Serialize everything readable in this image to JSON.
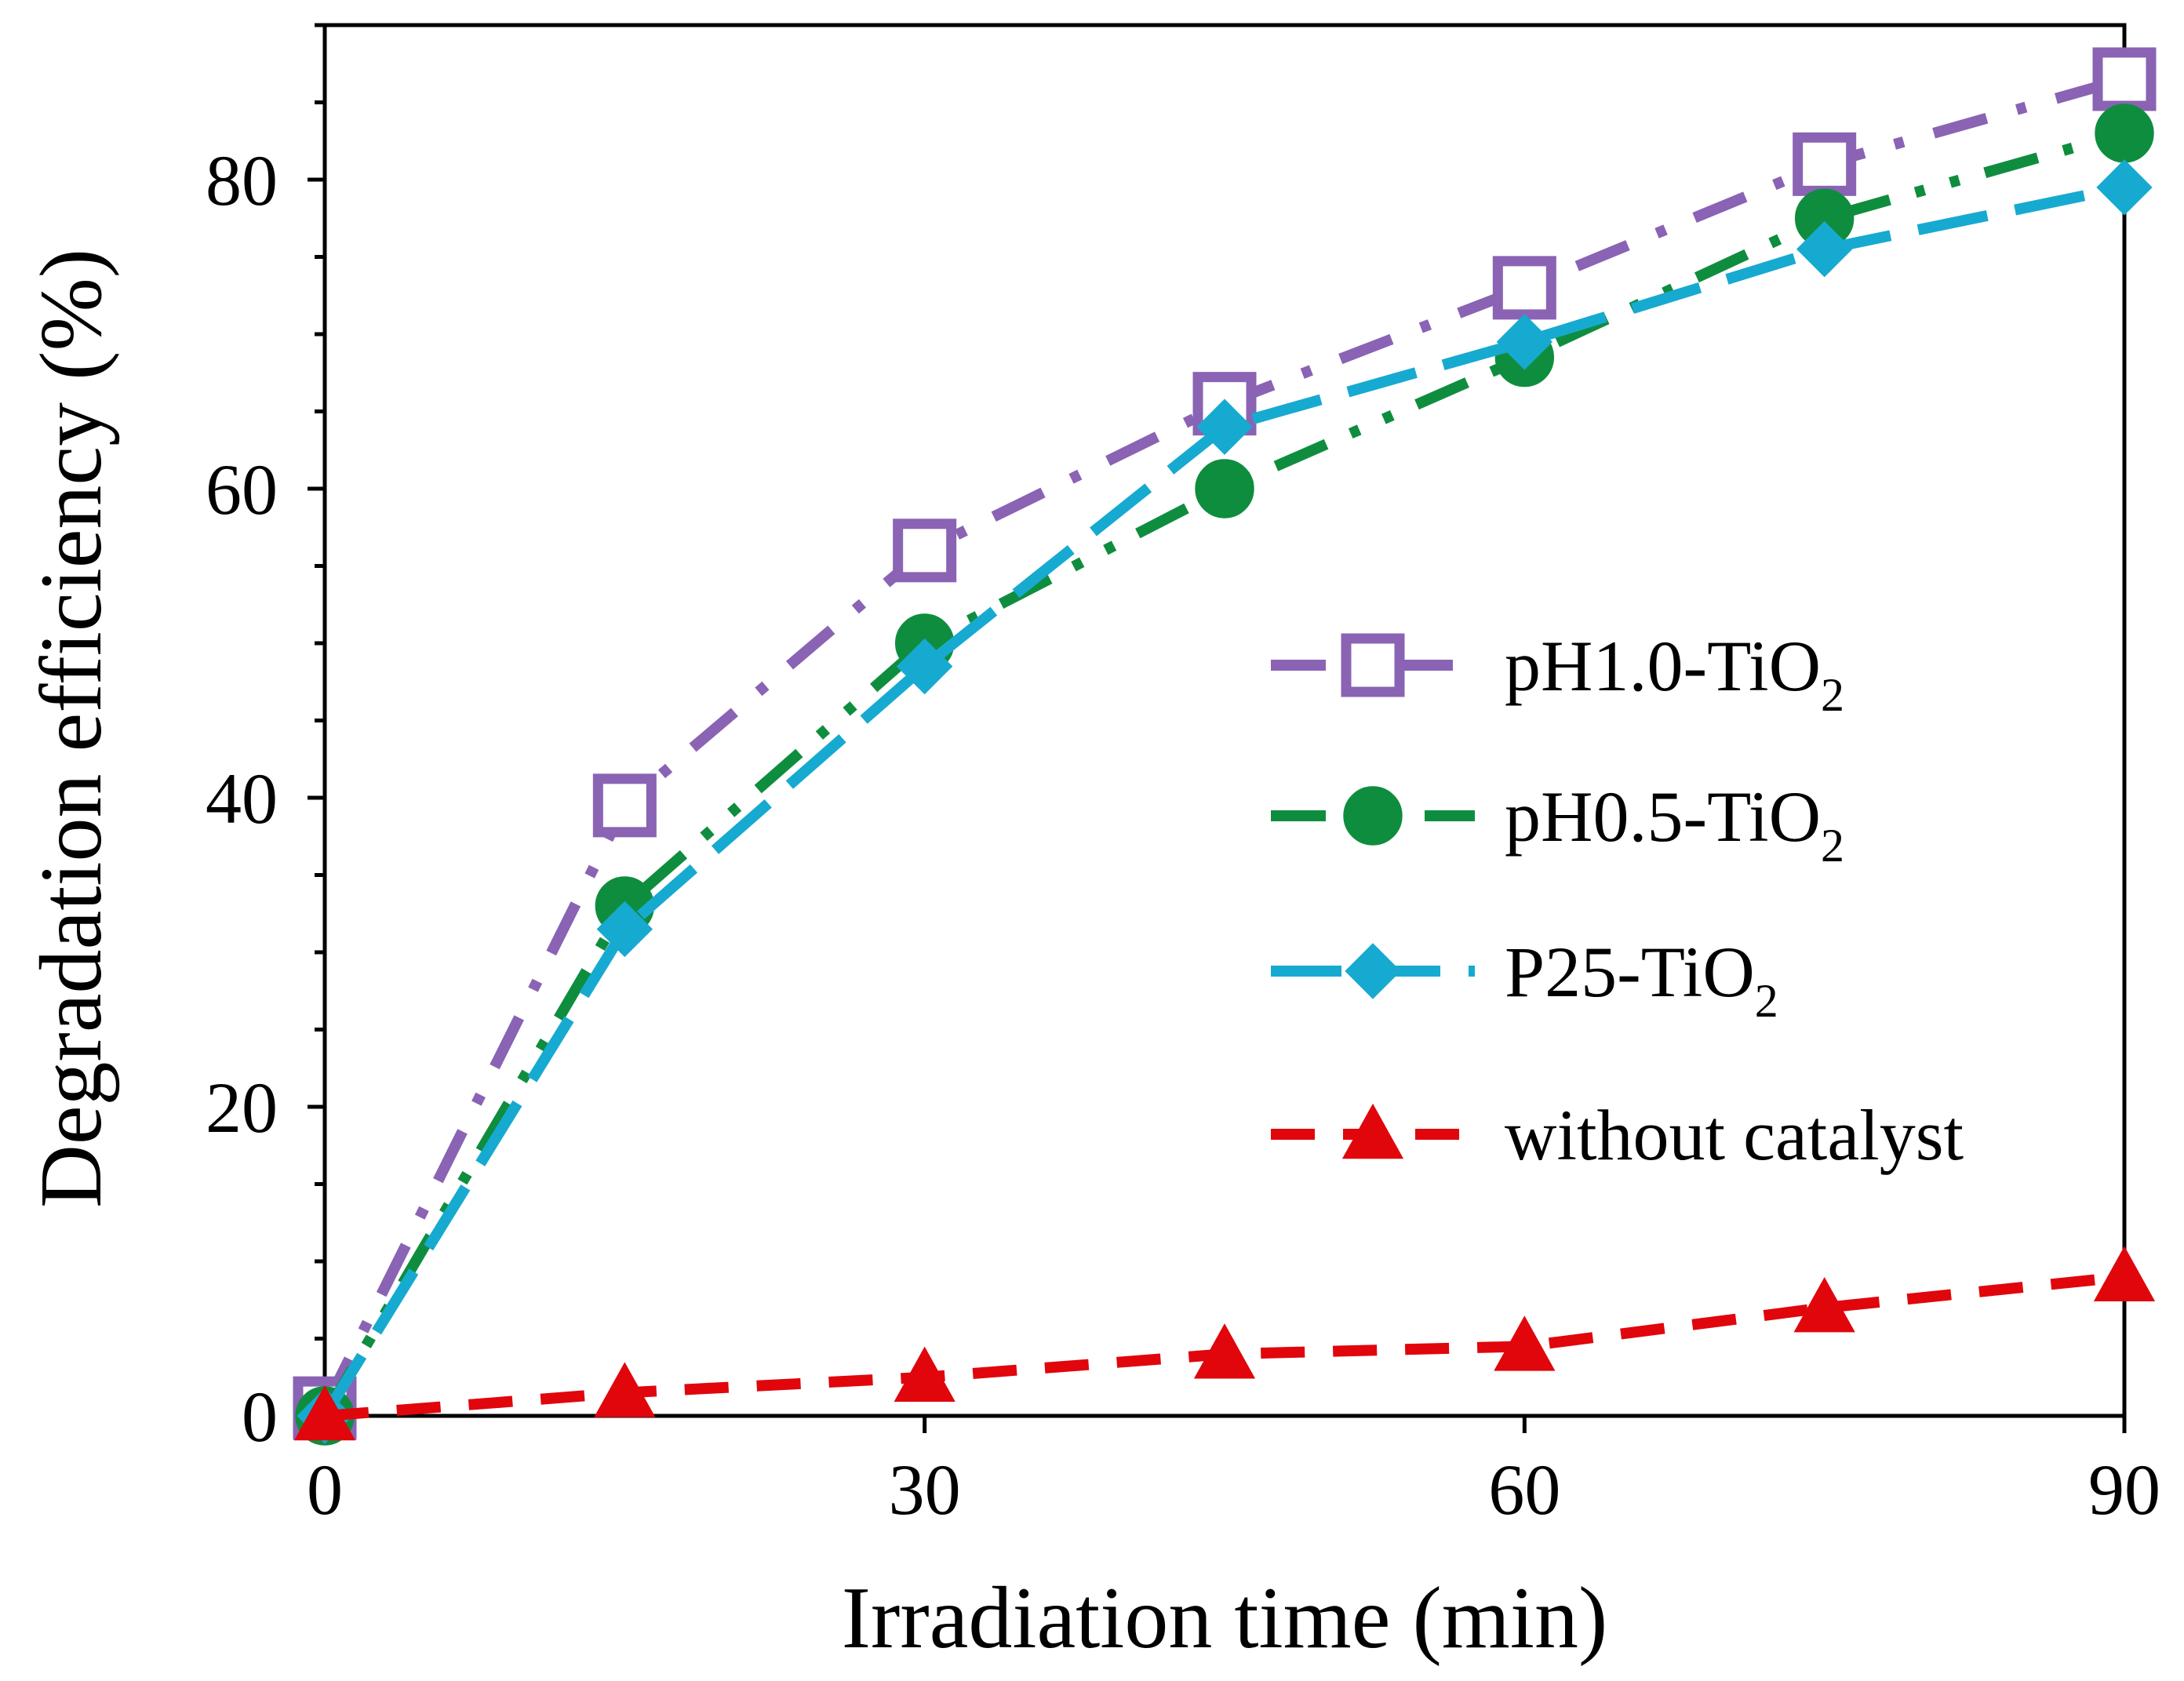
{
  "chart_data": {
    "type": "line",
    "title": "",
    "xlabel": "Irradiation time (min)",
    "ylabel": "Degradation efficiency (%)",
    "xlim": [
      0,
      90
    ],
    "ylim": [
      0,
      90
    ],
    "x_ticks": [
      0,
      30,
      60,
      90
    ],
    "y_ticks": [
      0,
      20,
      40,
      60,
      80
    ],
    "x_tick_labels": [
      "0",
      "30",
      "60",
      "90"
    ],
    "y_tick_labels": [
      "0",
      "20",
      "40",
      "60",
      "80"
    ],
    "x": [
      0,
      15,
      30,
      45,
      60,
      75,
      90
    ],
    "legend_position": "center-right",
    "series": [
      {
        "name": "pH1.0-TiO2",
        "label_main": "pH1.0-TiO",
        "label_sub": "2",
        "values": [
          0.5,
          39.5,
          56.0,
          65.5,
          73.0,
          81.0,
          86.5
        ],
        "color": "#8a63b4",
        "marker": "open-square",
        "line": "dash-dot"
      },
      {
        "name": "pH0.5-TiO2",
        "label_main": "pH0.5-TiO",
        "label_sub": "2",
        "values": [
          0.0,
          33.0,
          50.0,
          60.0,
          68.5,
          77.5,
          83.0
        ],
        "color": "#0f8d3f",
        "marker": "filled-circle",
        "line": "dash-dot-dot"
      },
      {
        "name": "P25-TiO2",
        "label_main": "P25-TiO",
        "label_sub": "2",
        "values": [
          0.0,
          31.5,
          48.5,
          64.0,
          69.5,
          75.5,
          79.5
        ],
        "color": "#17aad0",
        "marker": "filled-diamond",
        "line": "long-dash"
      },
      {
        "name": "without catalyst",
        "label_main": "without catalyst",
        "label_sub": "",
        "values": [
          0.0,
          1.5,
          2.5,
          4.0,
          4.5,
          7.0,
          9.0
        ],
        "color": "#e0060c",
        "marker": "filled-triangle",
        "line": "dash"
      }
    ]
  }
}
